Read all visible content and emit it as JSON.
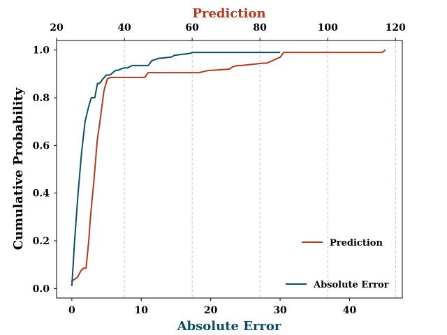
{
  "chart_data": {
    "type": "line",
    "ylabel": "Cumulative Probability",
    "ylim": [
      -0.04,
      1.04
    ],
    "yticks": [
      0.0,
      0.2,
      0.4,
      0.6,
      0.8,
      1.0
    ],
    "bottom_axis": {
      "label": "Absolute Error",
      "color": "#0b4f63",
      "lim": [
        -2.2,
        47.6
      ],
      "ticks": [
        0,
        10,
        20,
        30,
        40
      ]
    },
    "top_axis": {
      "label": "Prediction",
      "color": "#b5381f",
      "lim": [
        20,
        122
      ],
      "ticks": [
        20,
        40,
        60,
        80,
        100,
        120
      ]
    },
    "grid": "vertical dashed at top-axis ticks",
    "series": [
      {
        "name": "Prediction",
        "axis": "top",
        "color": "#b5381f",
        "x": [
          24.3,
          25.5,
          26.3,
          27.0,
          27.5,
          28.0,
          28.7,
          29.5,
          30.0,
          31.0,
          32.0,
          32.8,
          34.0,
          35.0,
          36.0,
          37.5,
          46.0,
          47.0,
          55.0,
          60.0,
          62.0,
          65.0,
          66.0,
          71.0,
          72.0,
          73.5,
          74.5,
          81.0,
          82.0,
          86.0,
          87.0,
          88.0,
          100.0,
          110.0,
          116.0,
          117.0
        ],
        "y": [
          0.03,
          0.04,
          0.05,
          0.07,
          0.08,
          0.085,
          0.085,
          0.2,
          0.3,
          0.45,
          0.62,
          0.7,
          0.83,
          0.88,
          0.885,
          0.885,
          0.885,
          0.905,
          0.905,
          0.905,
          0.905,
          0.915,
          0.915,
          0.92,
          0.93,
          0.935,
          0.935,
          0.945,
          0.945,
          0.97,
          0.99,
          0.99,
          0.99,
          0.99,
          0.99,
          1.0
        ]
      },
      {
        "name": "Absolute Error",
        "axis": "bottom",
        "color": "#0b4f63",
        "x": [
          0.0,
          0.4,
          0.9,
          1.4,
          1.9,
          2.4,
          2.8,
          3.3,
          3.7,
          4.0,
          4.5,
          5.0,
          5.5,
          6.3,
          6.6,
          7.5,
          8.0,
          8.7,
          11.0,
          11.5,
          12.5,
          14.3,
          14.8,
          16.8,
          17.5,
          20.0,
          25.0,
          30.0
        ],
        "y": [
          0.01,
          0.2,
          0.4,
          0.57,
          0.7,
          0.76,
          0.8,
          0.8,
          0.86,
          0.86,
          0.88,
          0.895,
          0.895,
          0.915,
          0.915,
          0.925,
          0.925,
          0.935,
          0.935,
          0.955,
          0.965,
          0.97,
          0.978,
          0.985,
          0.99,
          0.99,
          0.99,
          0.99
        ]
      }
    ],
    "legend": [
      {
        "label": "Prediction",
        "color": "#b5381f",
        "placement": "lower-right"
      },
      {
        "label": "Absolute Error",
        "color": "#0b4f63",
        "placement": "lower-right"
      }
    ]
  }
}
